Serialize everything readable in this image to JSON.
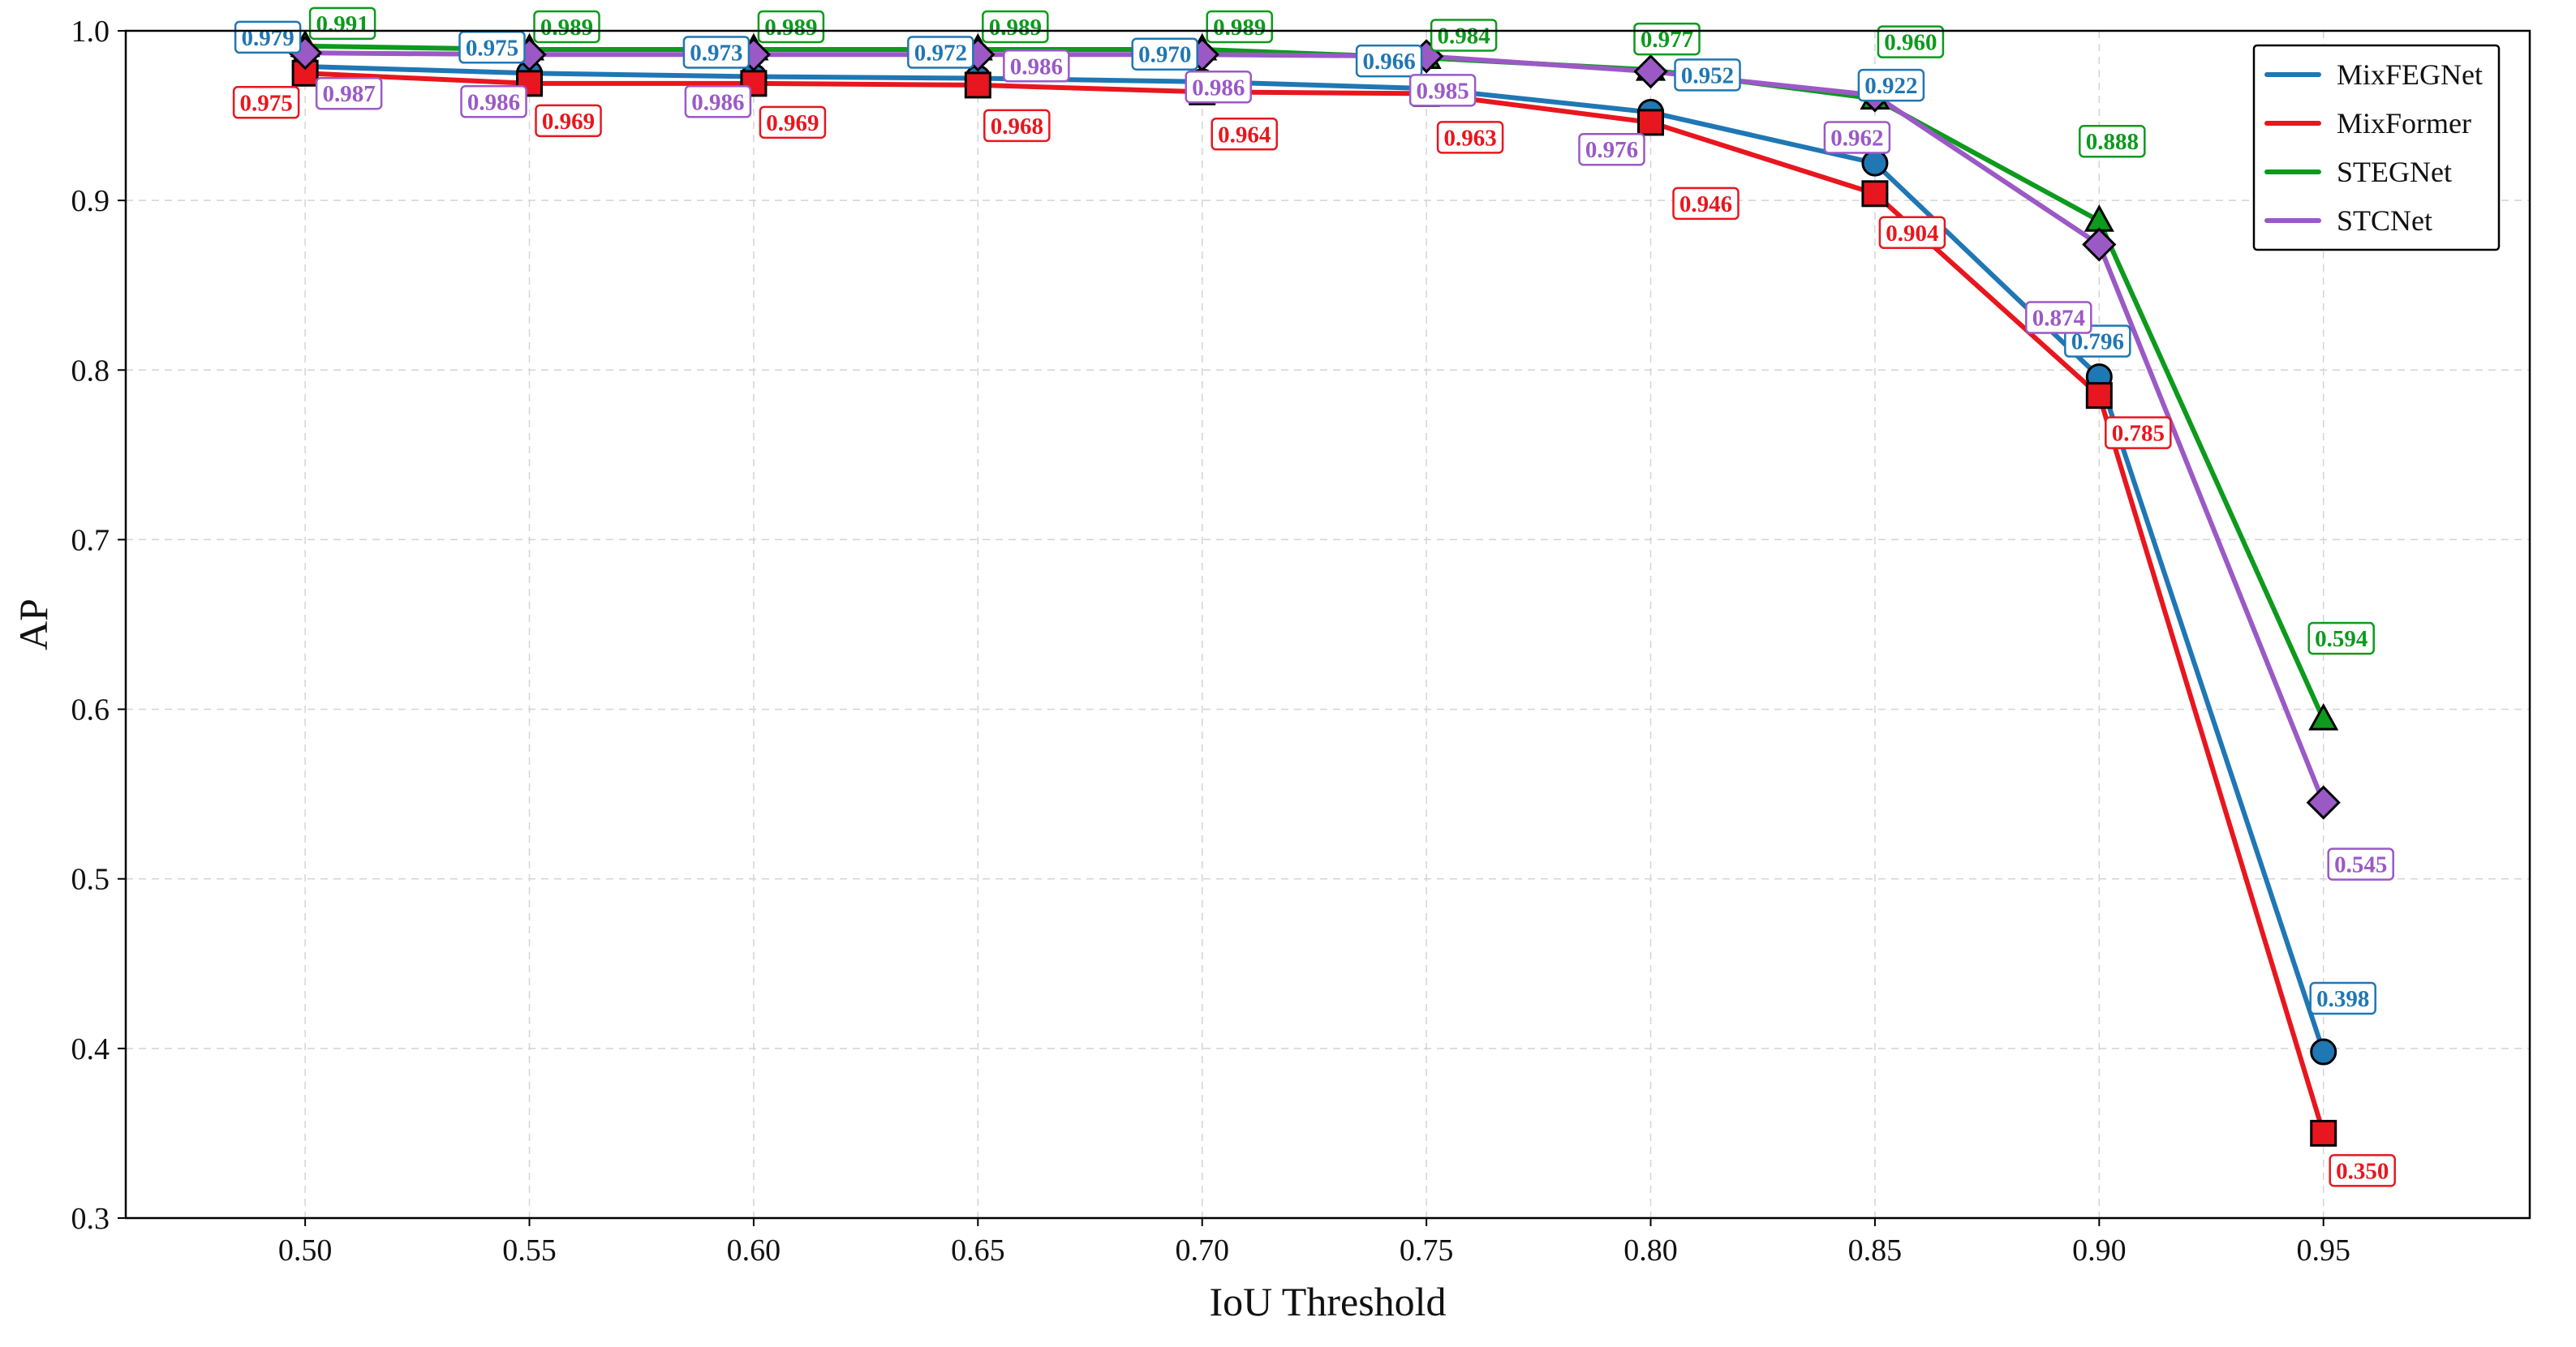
{
  "chart_data": {
    "type": "line",
    "title": "",
    "xlabel": "IoU Threshold",
    "ylabel": "AP",
    "x": [
      0.5,
      0.55,
      0.6,
      0.65,
      0.7,
      0.75,
      0.8,
      0.85,
      0.9,
      0.95
    ],
    "x_tick_labels": [
      "0.50",
      "0.55",
      "0.60",
      "0.65",
      "0.70",
      "0.75",
      "0.80",
      "0.85",
      "0.90",
      "0.95"
    ],
    "xlim": [
      0.46,
      0.996
    ],
    "ylim": [
      0.3,
      1.0
    ],
    "y_ticks": [
      0.3,
      0.4,
      0.5,
      0.6,
      0.7,
      0.8,
      0.9,
      1.0
    ],
    "y_tick_labels": [
      "0.3",
      "0.4",
      "0.5",
      "0.6",
      "0.7",
      "0.8",
      "0.9",
      "1.0"
    ],
    "grid": true,
    "legend_position": "top-right",
    "series": [
      {
        "name": "MixFEGNet",
        "color": "#1f77b4",
        "marker": "circle",
        "values": [
          0.979,
          0.975,
          0.973,
          0.972,
          0.97,
          0.966,
          0.952,
          0.922,
          0.796,
          0.398
        ],
        "labels": [
          "0.979",
          "0.975",
          "0.973",
          "0.972",
          "0.970",
          "0.966",
          "0.952",
          "0.922",
          "0.796",
          "0.398"
        ]
      },
      {
        "name": "MixFormer",
        "color": "#e8161e",
        "marker": "square",
        "values": [
          0.975,
          0.969,
          0.969,
          0.968,
          0.964,
          0.963,
          0.946,
          0.904,
          0.785,
          0.35
        ],
        "labels": [
          "0.975",
          "0.969",
          "0.969",
          "0.968",
          "0.964",
          "0.963",
          "0.946",
          "0.904",
          "0.785",
          "0.350"
        ]
      },
      {
        "name": "STEGNet",
        "color": "#0d9a1d",
        "marker": "triangle",
        "values": [
          0.991,
          0.989,
          0.989,
          0.989,
          0.989,
          0.984,
          0.977,
          0.96,
          0.888,
          0.594
        ],
        "labels": [
          "0.991",
          "0.989",
          "0.989",
          "0.989",
          "0.989",
          "0.984",
          "0.977",
          "0.960",
          "0.888",
          "0.594"
        ]
      },
      {
        "name": "STCNet",
        "color": "#9b59c6",
        "marker": "diamond",
        "values": [
          0.987,
          0.986,
          0.986,
          0.986,
          0.986,
          0.985,
          0.976,
          0.962,
          0.874,
          0.545
        ],
        "labels": [
          "0.987",
          "0.986",
          "0.986",
          "0.986",
          "0.986",
          "0.985",
          "0.976",
          "0.962",
          "0.874",
          "0.545"
        ]
      }
    ]
  }
}
